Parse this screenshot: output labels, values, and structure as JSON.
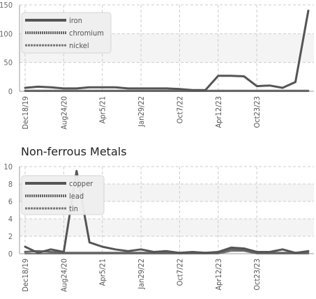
{
  "chart_data": [
    {
      "type": "line",
      "title": "",
      "ylim": [
        0,
        150
      ],
      "yticks": [
        0,
        50,
        100,
        150
      ],
      "ytick_labels": [
        "0",
        "50",
        "100",
        "150"
      ],
      "x_ticks": [
        "Dec18/19",
        "Aug24/20",
        "Apr5/21",
        "Jan29/22",
        "Oct7/22",
        "Apr12/23",
        "Oct23/23"
      ],
      "grid": true,
      "legend_position": "top-left",
      "series": [
        {
          "name": "iron",
          "color": "#555555",
          "values": [
            6,
            8,
            7,
            5,
            5,
            7,
            7,
            7,
            5,
            5,
            5,
            5,
            4,
            2,
            2,
            27,
            27,
            26,
            9,
            10,
            6,
            16,
            140
          ]
        },
        {
          "name": "chromium",
          "color": "#666666",
          "values": [
            1,
            1,
            1,
            1,
            1,
            1,
            1,
            1,
            1,
            1,
            1,
            1,
            1,
            1,
            1,
            1,
            1,
            1,
            1,
            1,
            1,
            1,
            1
          ]
        },
        {
          "name": "nickel",
          "color": "#777777",
          "values": [
            0,
            0,
            0,
            0,
            0,
            0,
            0,
            0,
            0,
            0,
            0,
            0,
            0,
            0,
            0,
            0,
            0,
            0,
            0,
            0,
            0,
            0,
            0
          ]
        }
      ]
    },
    {
      "type": "line",
      "title": "Non-ferrous Metals",
      "ylim": [
        0,
        10
      ],
      "yticks": [
        0,
        2,
        4,
        6,
        8,
        10
      ],
      "ytick_labels": [
        "0",
        "2",
        "4",
        "6",
        "8",
        "10"
      ],
      "x_ticks": [
        "Dec18/19",
        "Aug24/20",
        "Apr5/21",
        "Jan29/22",
        "Oct7/22",
        "Apr12/23",
        "Oct23/23"
      ],
      "grid": true,
      "legend_position": "top-left",
      "series": [
        {
          "name": "copper",
          "color": "#555555",
          "values": [
            0.8,
            0.1,
            0.5,
            0.2,
            9.5,
            1.3,
            0.8,
            0.5,
            0.3,
            0.5,
            0.2,
            0.3,
            0.1,
            0.2,
            0.1,
            0.2,
            0.7,
            0.6,
            0.2,
            0.2,
            0.5,
            0.1,
            0.3
          ]
        },
        {
          "name": "lead",
          "color": "#666666",
          "values": [
            0.2,
            0.3,
            0.2,
            0.1,
            0.1,
            0.1,
            0.1,
            0.1,
            0.1,
            0.1,
            0.1,
            0.1,
            0.1,
            0.1,
            0.1,
            0.1,
            0.5,
            0.4,
            0.1,
            0.1,
            0.1,
            0.1,
            0.1
          ]
        },
        {
          "name": "tin",
          "color": "#777777",
          "values": [
            0,
            0,
            0,
            0,
            0,
            0,
            0,
            0,
            0,
            0,
            0,
            0,
            0,
            0,
            0,
            0,
            0.3,
            0.3,
            0,
            0,
            0,
            0,
            0
          ]
        }
      ]
    }
  ]
}
